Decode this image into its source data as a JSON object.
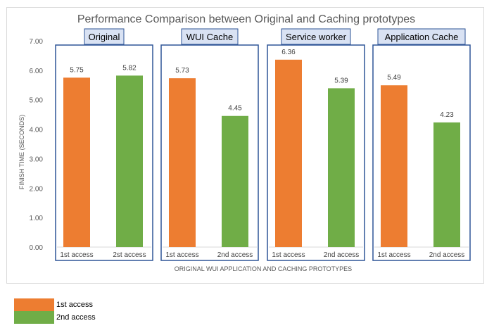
{
  "chart_data": {
    "type": "bar",
    "title": "Performance Comparison between Original and Caching prototypes",
    "xlabel": "ORIGINAL WUI APPLICATION AND CACHING PROTOTYPES",
    "ylabel": "FINISH TIME (SECONDS)",
    "ylim": [
      0,
      7
    ],
    "yticks": [
      "0.00",
      "1.00",
      "2.00",
      "3.00",
      "4.00",
      "5.00",
      "6.00",
      "7.00"
    ],
    "grid": false,
    "groups": [
      {
        "title": "Original",
        "bars": [
          {
            "label": "1st access",
            "value": 5.75,
            "value_label": "5.75",
            "series": 0
          },
          {
            "label": "2st access",
            "value": 5.82,
            "value_label": "5.82",
            "series": 1
          }
        ]
      },
      {
        "title": "WUI Cache",
        "bars": [
          {
            "label": "1st access",
            "value": 5.73,
            "value_label": "5.73",
            "series": 0
          },
          {
            "label": "2nd access",
            "value": 4.45,
            "value_label": "4.45",
            "series": 1
          }
        ]
      },
      {
        "title": "Service worker",
        "bars": [
          {
            "label": "1st access",
            "value": 6.36,
            "value_label": "6.36",
            "series": 0
          },
          {
            "label": "2nd access",
            "value": 5.39,
            "value_label": "5.39",
            "series": 1
          }
        ]
      },
      {
        "title": "Application Cache",
        "bars": [
          {
            "label": "1st access",
            "value": 5.49,
            "value_label": "5.49",
            "series": 0
          },
          {
            "label": "2nd access",
            "value": 4.23,
            "value_label": "4.23",
            "series": 1
          }
        ]
      }
    ],
    "series": [
      {
        "name": "1st  access",
        "color": "#ED7D31"
      },
      {
        "name": "2nd access",
        "color": "#70AD47"
      }
    ],
    "group_box_color": "#2F5597",
    "group_title_fill": "#D9E2F3"
  }
}
